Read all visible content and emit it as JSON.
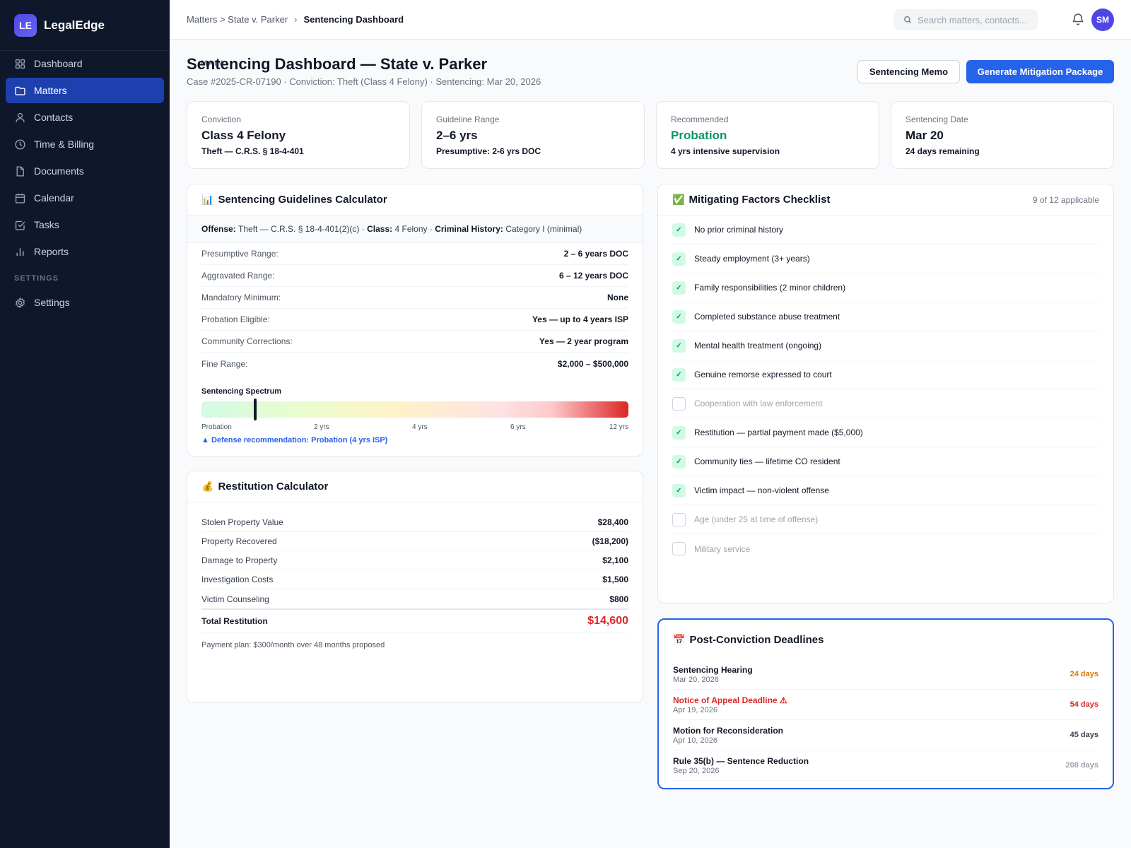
{
  "brand": {
    "logo": "LE",
    "name": "LegalEdge"
  },
  "nav": {
    "main_label": "MAIN",
    "settings_label": "SETTINGS",
    "items": [
      {
        "label": "Dashboard",
        "icon": "grid-icon"
      },
      {
        "label": "Matters",
        "icon": "folder-icon",
        "active": true
      },
      {
        "label": "Contacts",
        "icon": "user-icon"
      },
      {
        "label": "Time & Billing",
        "icon": "clock-icon"
      },
      {
        "label": "Documents",
        "icon": "document-icon"
      },
      {
        "label": "Calendar",
        "icon": "calendar-icon"
      },
      {
        "label": "Tasks",
        "icon": "checkbox-icon"
      },
      {
        "label": "Reports",
        "icon": "bar-chart-icon"
      }
    ],
    "settings_item": {
      "label": "Settings",
      "icon": "gear-icon"
    }
  },
  "topbar": {
    "breadcrumb_parent": "Matters > State v. Parker",
    "breadcrumb_sep": "›",
    "breadcrumb_current": "Sentencing Dashboard",
    "search_placeholder": "Search matters, contacts...",
    "avatar": "SM"
  },
  "header": {
    "title": "Sentencing Dashboard — State v. Parker",
    "subtitle": "Case #2025-CR-07190 · Conviction: Theft (Class 4 Felony) · Sentencing: Mar 20, 2026",
    "memo_button": "Sentencing Memo",
    "mitigation_button": "Generate Mitigation Package"
  },
  "stats": [
    {
      "label": "Conviction",
      "value": "Class 4 Felony",
      "note": "Theft — C.R.S. § 18-4-401"
    },
    {
      "label": "Guideline Range",
      "value": "2–6 yrs",
      "note": "Presumptive: 2-6 yrs DOC"
    },
    {
      "label": "Recommended",
      "value": "Probation",
      "note": "4 yrs intensive supervision",
      "color": "#059669"
    },
    {
      "label": "Sentencing Date",
      "value": "Mar 20",
      "note": "24 days remaining"
    }
  ],
  "guidelines": {
    "emoji": "📊",
    "title": "Sentencing Guidelines Calculator",
    "offense_label": "Offense:",
    "offense_value": "Theft — C.R.S. § 18-4-401(2)(c)",
    "class_label": "Class:",
    "class_value": "4 Felony",
    "history_label": "Criminal History:",
    "history_value": "Category I (minimal)",
    "dot": "·",
    "rows": [
      {
        "label": "Presumptive Range:",
        "value": "2 – 6 years DOC"
      },
      {
        "label": "Aggravated Range:",
        "value": "6 – 12 years DOC"
      },
      {
        "label": "Mandatory Minimum:",
        "value": "None"
      },
      {
        "label": "Probation Eligible:",
        "value": "Yes — up to 4 years ISP"
      },
      {
        "label": "Community Corrections:",
        "value": "Yes — 2 year program"
      },
      {
        "label": "Fine Range:",
        "value": "$2,000 – $500,000"
      }
    ],
    "spectrum_title": "Sentencing Spectrum",
    "spectrum_ticks": [
      "Probation",
      "2 yrs",
      "4 yrs",
      "6 yrs",
      "12 yrs"
    ],
    "spectrum_marker_fraction": 0.123,
    "recommendation": "▲ Defense recommendation: Probation (4 yrs ISP)"
  },
  "restitution": {
    "emoji": "💰",
    "title": "Restitution Calculator",
    "rows": [
      {
        "label": "Stolen Property Value",
        "value": "$28,400"
      },
      {
        "label": "Property Recovered",
        "value": "($18,200)"
      },
      {
        "label": "Damage to Property",
        "value": "$2,100"
      },
      {
        "label": "Investigation Costs",
        "value": "$1,500"
      },
      {
        "label": "Victim Counseling",
        "value": "$800"
      }
    ],
    "total_label": "Total Restitution",
    "total_value": "$14,600",
    "note": "Payment plan: $300/month over 48 months proposed"
  },
  "mitigating": {
    "emoji": "✅",
    "title": "Mitigating Factors Checklist",
    "count": "9 of 12 applicable",
    "check_mark": "✓",
    "items": [
      {
        "label": "No prior criminal history",
        "checked": true
      },
      {
        "label": "Steady employment (3+ years)",
        "checked": true
      },
      {
        "label": "Family responsibilities (2 minor children)",
        "checked": true
      },
      {
        "label": "Completed substance abuse treatment",
        "checked": true
      },
      {
        "label": "Mental health treatment (ongoing)",
        "checked": true
      },
      {
        "label": "Genuine remorse expressed to court",
        "checked": true
      },
      {
        "label": "Cooperation with law enforcement",
        "checked": false
      },
      {
        "label": "Restitution — partial payment made ($5,000)",
        "checked": true
      },
      {
        "label": "Community ties — lifetime CO resident",
        "checked": true
      },
      {
        "label": "Victim impact — non-violent offense",
        "checked": true
      },
      {
        "label": "Age (under 25 at time of offense)",
        "checked": false
      },
      {
        "label": "Military service",
        "checked": false
      }
    ]
  },
  "deadlines": {
    "emoji": "📅",
    "title": "Post-Conviction Deadlines",
    "items": [
      {
        "title": "Sentencing Hearing",
        "date": "Mar 20, 2026",
        "countdown": "24 days",
        "color": "#d97706"
      },
      {
        "title": "Notice of Appeal Deadline ⚠",
        "date": "Apr 19, 2026",
        "countdown": "54 days",
        "color": "#dc2626",
        "urgent": true
      },
      {
        "title": "Motion for Reconsideration",
        "date": "Apr 10, 2026",
        "countdown": "45 days",
        "color": "#374151"
      },
      {
        "title": "Rule 35(b) — Sentence Reduction",
        "date": "Sep 20, 2026",
        "countdown": "208 days",
        "color": "#9ca3af"
      }
    ]
  }
}
